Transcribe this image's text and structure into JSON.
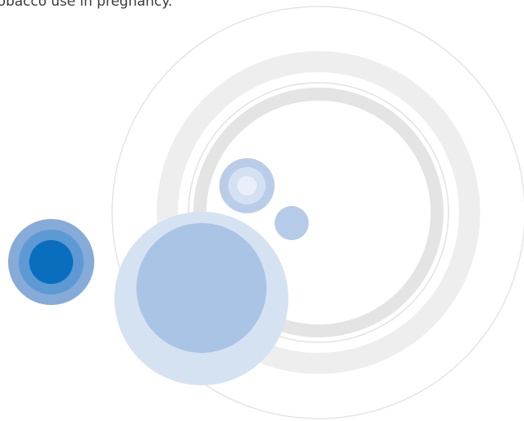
{
  "caption": "tobacco use in pregnancy."
}
